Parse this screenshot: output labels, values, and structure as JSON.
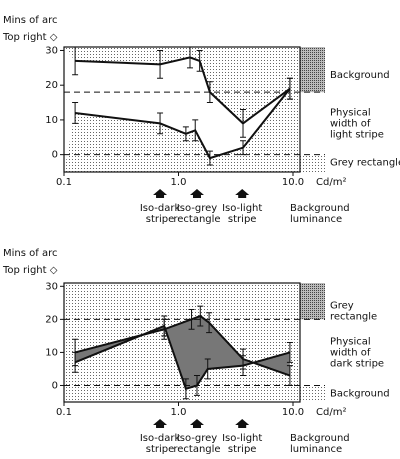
{
  "chart_data": [
    {
      "type": "line",
      "fill": "outside",
      "y_label": "Mins of arc",
      "y_sublabel": "Top right ◇",
      "x_unit": "Cd/m²",
      "x_label": [
        "Background",
        "luminance"
      ],
      "xlim": [
        0.1,
        10
      ],
      "log_x": true,
      "xticks": [
        {
          "value": 0.1,
          "label": "0.1"
        },
        {
          "value": 1,
          "label": "1.0"
        },
        {
          "value": 10,
          "label": "10.0"
        }
      ],
      "ylim": [
        -5,
        31
      ],
      "yticks": [
        0,
        10,
        20,
        30
      ],
      "dashed_lines": [
        18,
        0
      ],
      "right_labels": [
        [
          "Background"
        ],
        [
          "Physical",
          "width of",
          "light stripe"
        ],
        [
          "Grey rectangle"
        ]
      ],
      "series": [
        {
          "x": [
            0.125,
            0.69,
            1.26,
            1.53,
            1.88,
            3.66,
            9.4
          ],
          "values": [
            27,
            26,
            28,
            27,
            18,
            9,
            19
          ],
          "errors": [
            4,
            4,
            3,
            3,
            3,
            4,
            3
          ]
        },
        {
          "x": [
            0.125,
            0.69,
            1.16,
            1.4,
            1.88,
            3.66,
            9.4
          ],
          "values": [
            12,
            9,
            6,
            7,
            -1,
            2,
            19
          ],
          "errors": [
            3,
            3,
            2,
            3,
            2,
            2,
            3
          ]
        }
      ],
      "arrows": [
        {
          "x": 0.69,
          "label": [
            "Iso-dark",
            "stripe"
          ]
        },
        {
          "x": 1.45,
          "label": [
            "Iso-grey",
            "rectangle"
          ]
        },
        {
          "x": 3.6,
          "label": [
            "Iso-light",
            "stripe"
          ]
        }
      ]
    },
    {
      "type": "line",
      "fill": "between",
      "y_label": "Mins of arc",
      "y_sublabel": "Top right ◇",
      "x_unit": "Cd/m²",
      "x_label": [
        "Background",
        "luminance"
      ],
      "xlim": [
        0.1,
        10
      ],
      "log_x": true,
      "xticks": [
        {
          "value": 0.1,
          "label": "0.1"
        },
        {
          "value": 1,
          "label": "1.0"
        },
        {
          "value": 10,
          "label": "10.0"
        }
      ],
      "ylim": [
        -5,
        31
      ],
      "yticks": [
        0,
        10,
        20,
        30
      ],
      "dashed_lines": [
        20,
        0
      ],
      "right_labels": [
        [
          "Grey",
          "rectangle"
        ],
        [
          "Physical",
          "width of",
          "dark stripe"
        ],
        [
          "Background"
        ]
      ],
      "series": [
        {
          "x": [
            0.125,
            0.75,
            1.3,
            1.55,
            1.85,
            3.66,
            9.4
          ],
          "values": [
            10,
            17,
            20,
            21,
            19,
            8,
            3
          ],
          "errors": [
            4,
            3,
            3,
            3,
            3,
            3,
            3
          ]
        },
        {
          "x": [
            0.125,
            0.75,
            1.16,
            1.45,
            1.8,
            3.66,
            9.4
          ],
          "values": [
            7,
            18,
            -1,
            0,
            5,
            6,
            10
          ],
          "errors": [
            3,
            3,
            3,
            3,
            3,
            3,
            3
          ]
        }
      ],
      "arrows": [
        {
          "x": 0.69,
          "label": [
            "Iso-dark",
            "stripe"
          ]
        },
        {
          "x": 1.45,
          "label": [
            "Iso-grey",
            "rectangle"
          ]
        },
        {
          "x": 3.6,
          "label": [
            "Iso-light",
            "stripe"
          ]
        }
      ]
    }
  ]
}
